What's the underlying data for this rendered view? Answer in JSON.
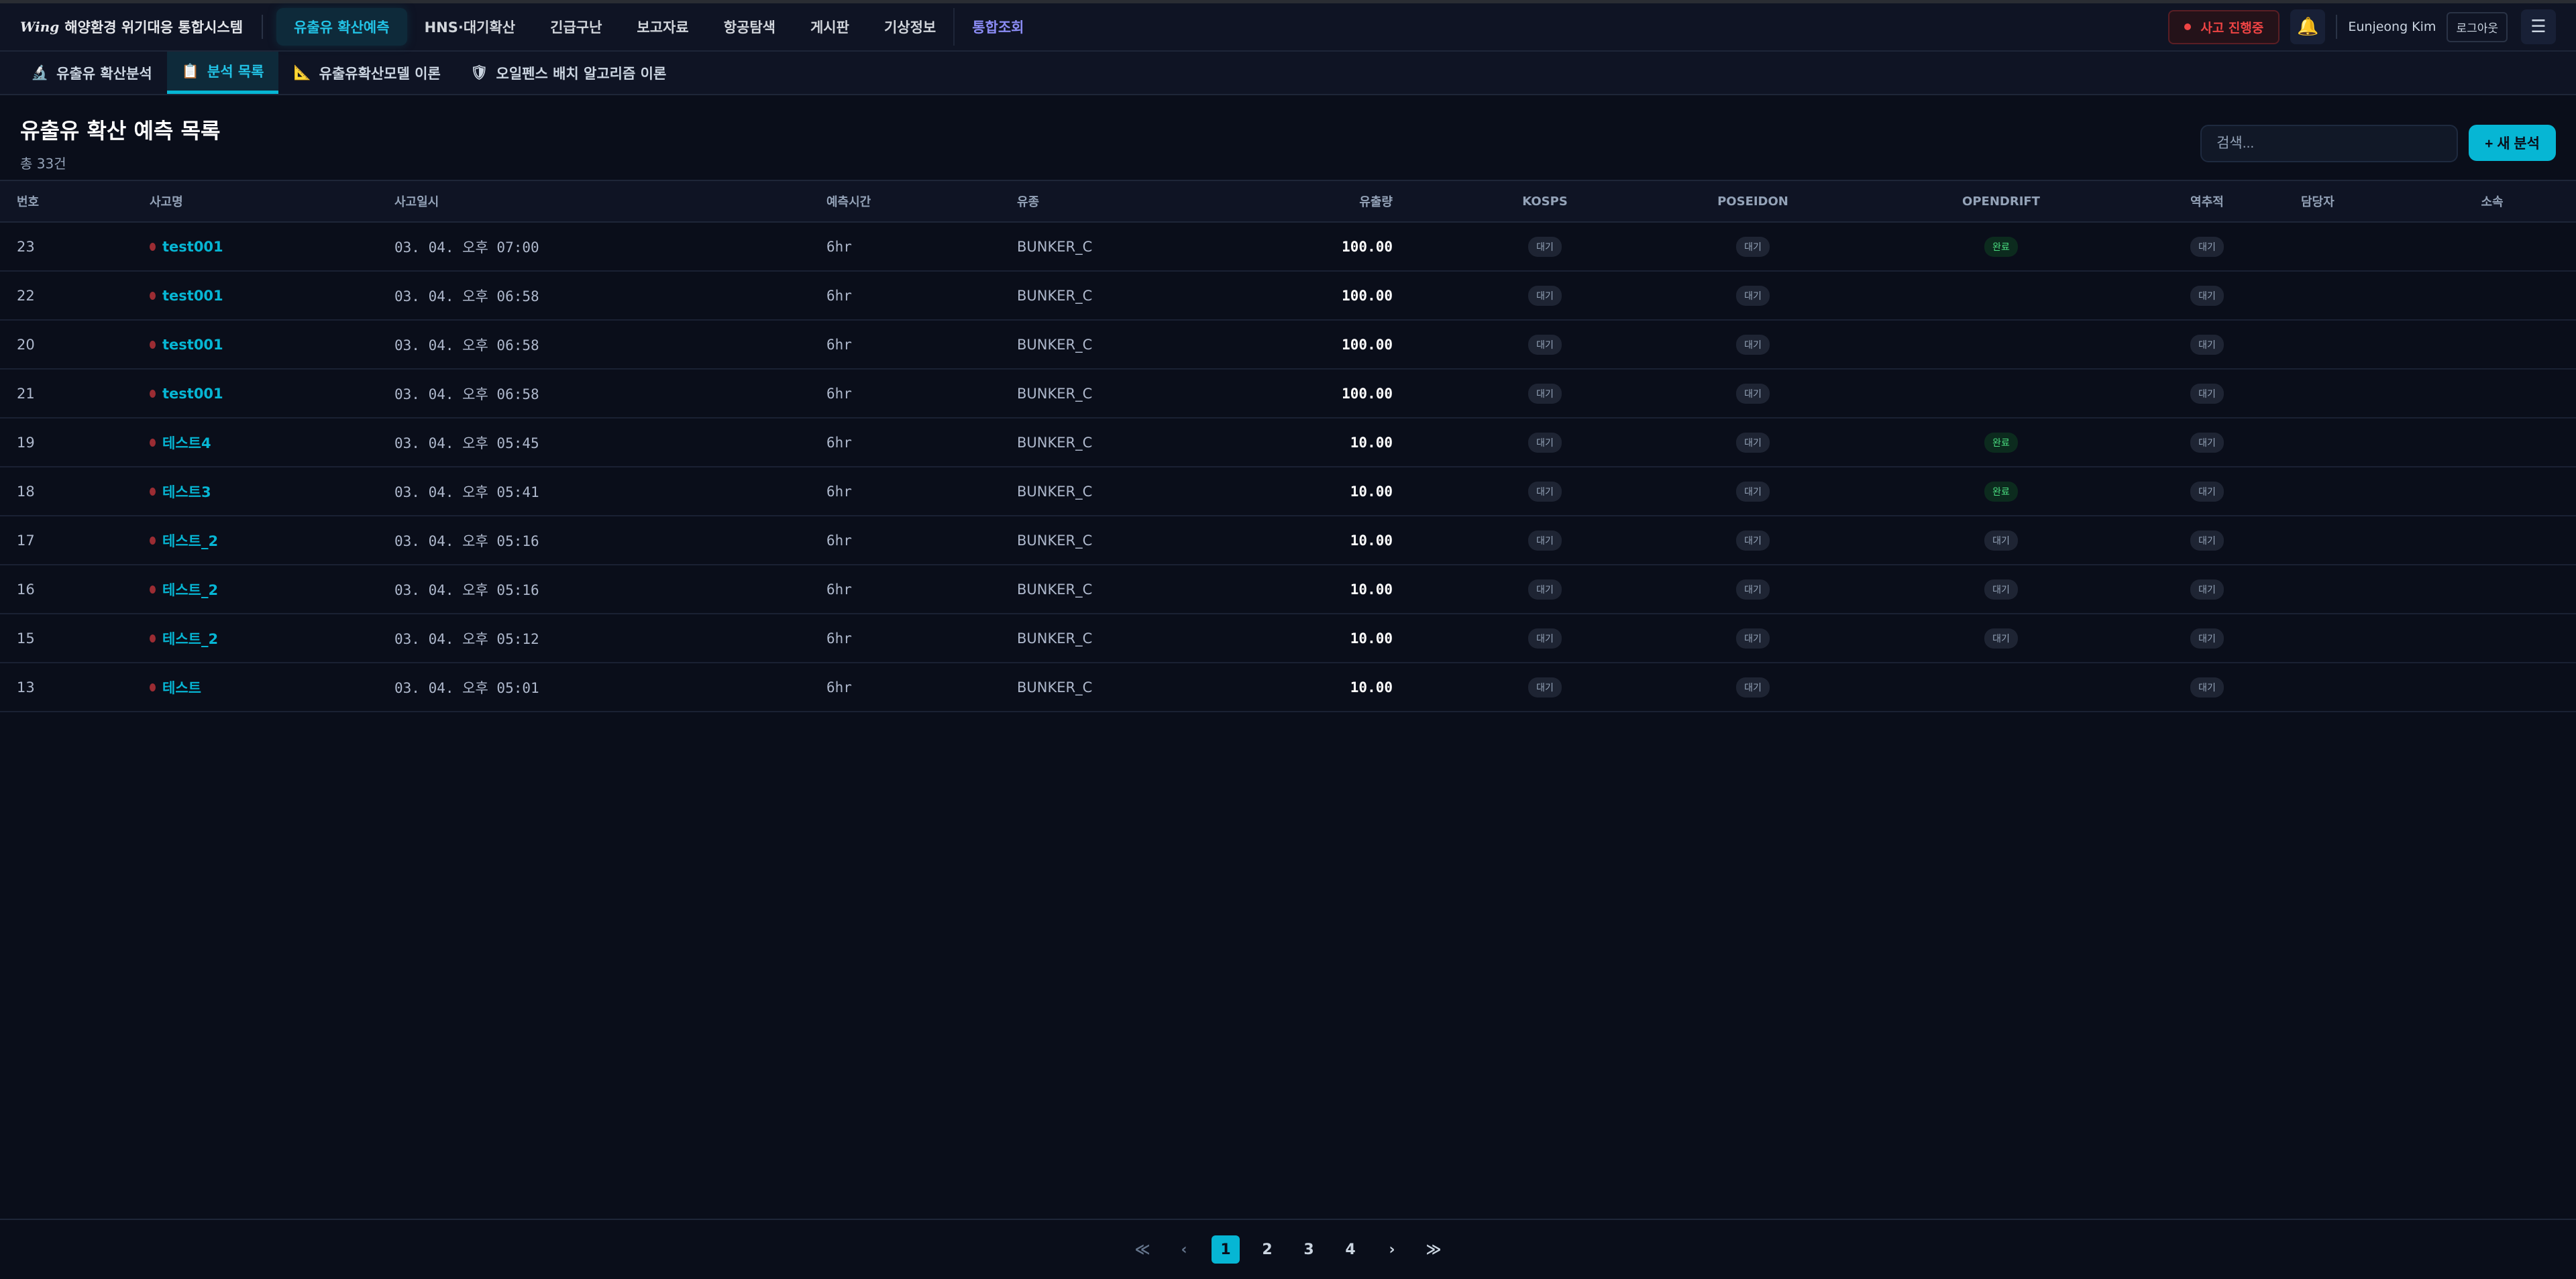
{
  "app": {
    "logo_mark": "Wing",
    "title": "해양환경 위기대응 통합시스템"
  },
  "nav": [
    "유출유 확산예측",
    "HNS·대기확산",
    "긴급구난",
    "보고자료",
    "항공탐색",
    "게시판",
    "기상정보",
    "통합조회"
  ],
  "header_right": {
    "incident": "사고 진행중",
    "user": "Eunjeong Kim",
    "logout": "로그아웃",
    "bell_icon": "bell-icon",
    "menu_icon": "hamburger-icon"
  },
  "subtabs": [
    {
      "icon": "🔬",
      "label": "유출유 확산분석"
    },
    {
      "icon": "📋",
      "label": "분석 목록"
    },
    {
      "icon": "📐",
      "label": "유출유확산모델 이론"
    },
    {
      "icon": "🛡",
      "label": "오일펜스 배치 알고리즘 이론"
    }
  ],
  "page": {
    "title": "유출유 확산 예측 목록",
    "count": "총 33건",
    "search_placeholder": "검색...",
    "new_button": "+ 새 분석"
  },
  "columns": [
    "번호",
    "사고명",
    "사고일시",
    "예측시간",
    "유종",
    "유출량",
    "KOSPS",
    "POSEIDON",
    "OPENDRIFT",
    "역추적",
    "담당자",
    "소속"
  ],
  "rows": [
    {
      "no": "23",
      "name": "test001",
      "date": "03. 04. 오후 07:00",
      "hours": "6hr",
      "oil": "BUNKER_C",
      "amount": "100.00",
      "kosps": "대기",
      "poseidon": "대기",
      "opendrift": "완료",
      "back": "대기",
      "manager": "",
      "org": ""
    },
    {
      "no": "22",
      "name": "test001",
      "date": "03. 04. 오후 06:58",
      "hours": "6hr",
      "oil": "BUNKER_C",
      "amount": "100.00",
      "kosps": "대기",
      "poseidon": "대기",
      "opendrift": "",
      "back": "대기",
      "manager": "",
      "org": ""
    },
    {
      "no": "20",
      "name": "test001",
      "date": "03. 04. 오후 06:58",
      "hours": "6hr",
      "oil": "BUNKER_C",
      "amount": "100.00",
      "kosps": "대기",
      "poseidon": "대기",
      "opendrift": "",
      "back": "대기",
      "manager": "",
      "org": ""
    },
    {
      "no": "21",
      "name": "test001",
      "date": "03. 04. 오후 06:58",
      "hours": "6hr",
      "oil": "BUNKER_C",
      "amount": "100.00",
      "kosps": "대기",
      "poseidon": "대기",
      "opendrift": "",
      "back": "대기",
      "manager": "",
      "org": ""
    },
    {
      "no": "19",
      "name": "테스트4",
      "date": "03. 04. 오후 05:45",
      "hours": "6hr",
      "oil": "BUNKER_C",
      "amount": "10.00",
      "kosps": "대기",
      "poseidon": "대기",
      "opendrift": "완료",
      "back": "대기",
      "manager": "",
      "org": ""
    },
    {
      "no": "18",
      "name": "테스트3",
      "date": "03. 04. 오후 05:41",
      "hours": "6hr",
      "oil": "BUNKER_C",
      "amount": "10.00",
      "kosps": "대기",
      "poseidon": "대기",
      "opendrift": "완료",
      "back": "대기",
      "manager": "",
      "org": ""
    },
    {
      "no": "17",
      "name": "테스트_2",
      "date": "03. 04. 오후 05:16",
      "hours": "6hr",
      "oil": "BUNKER_C",
      "amount": "10.00",
      "kosps": "대기",
      "poseidon": "대기",
      "opendrift": "대기",
      "back": "대기",
      "manager": "",
      "org": ""
    },
    {
      "no": "16",
      "name": "테스트_2",
      "date": "03. 04. 오후 05:16",
      "hours": "6hr",
      "oil": "BUNKER_C",
      "amount": "10.00",
      "kosps": "대기",
      "poseidon": "대기",
      "opendrift": "대기",
      "back": "대기",
      "manager": "",
      "org": ""
    },
    {
      "no": "15",
      "name": "테스트_2",
      "date": "03. 04. 오후 05:12",
      "hours": "6hr",
      "oil": "BUNKER_C",
      "amount": "10.00",
      "kosps": "대기",
      "poseidon": "대기",
      "opendrift": "대기",
      "back": "대기",
      "manager": "",
      "org": ""
    },
    {
      "no": "13",
      "name": "테스트",
      "date": "03. 04. 오후 05:01",
      "hours": "6hr",
      "oil": "BUNKER_C",
      "amount": "10.00",
      "kosps": "대기",
      "poseidon": "대기",
      "opendrift": "",
      "back": "대기",
      "manager": "",
      "org": ""
    }
  ],
  "pagination": {
    "first": "≪",
    "prev": "‹",
    "pages": [
      "1",
      "2",
      "3",
      "4"
    ],
    "current": "1",
    "next": "›",
    "last": "≫"
  },
  "colors": {
    "accent": "#06b6d4",
    "bg": "#0a0e1a",
    "done": "#4ade80",
    "alert": "#ef4444",
    "special_nav": "#8b8cf5"
  }
}
